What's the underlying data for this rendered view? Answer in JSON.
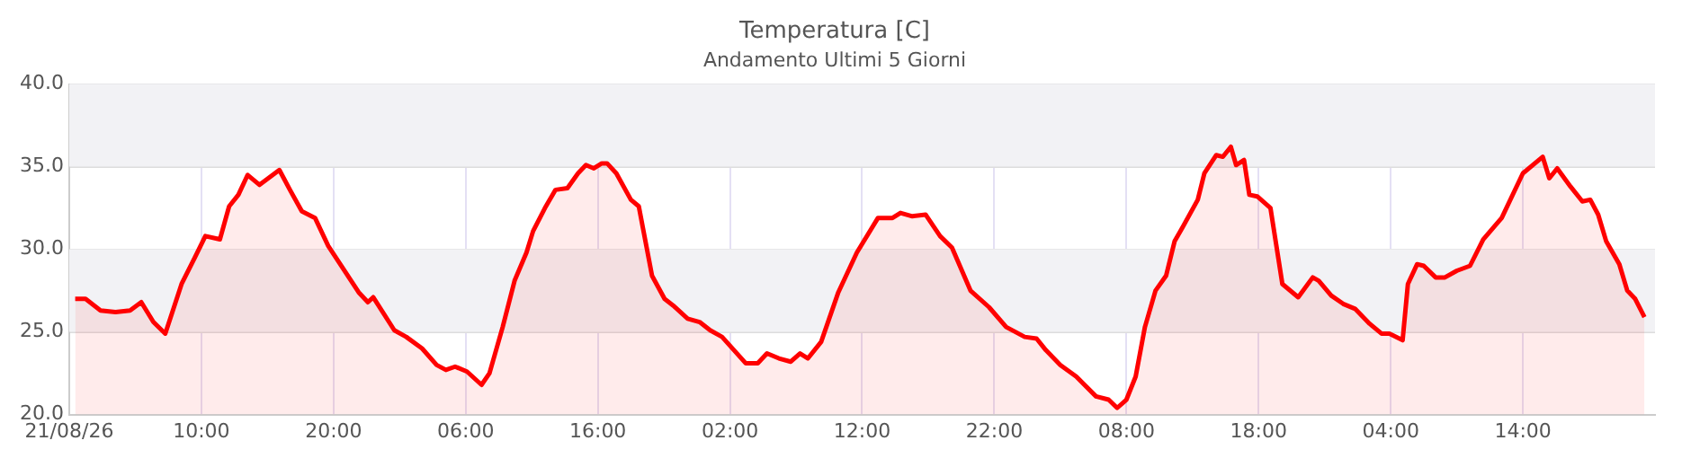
{
  "chart_data": {
    "type": "area",
    "title": "Temperatura [C]",
    "subtitle": "Andamento Ultimi 5 Giorni",
    "x": [
      "--08-21T00:27",
      "--08-21T01:14",
      "--08-21T02:22",
      "--08-21T03:30",
      "--08-21T04:36",
      "--08-21T05:27",
      "--08-21T06:22",
      "--08-21T07:16",
      "--08-21T08:30",
      "--08-21T09:30",
      "--08-21T10:18",
      "--08-21T11:24",
      "--08-21T12:06",
      "--08-21T12:48",
      "--08-21T13:30",
      "--08-21T14:24",
      "--08-21T15:54",
      "--08-21T16:42",
      "--08-21T17:36",
      "--08-21T18:36",
      "--08-21T19:36",
      "--08-21T20:45",
      "--08-21T21:54",
      "--08-21T22:36",
      "--08-21T23:00",
      "--08-22T00:36",
      "--08-22T01:30",
      "--08-22T02:42",
      "--08-22T03:48",
      "--08-22T04:30",
      "--08-22T05:12",
      "--08-22T06:06",
      "--08-22T07:12",
      "--08-22T07:48",
      "--08-22T08:48",
      "--08-22T09:42",
      "--08-22T10:36",
      "--08-22T11:06",
      "--08-22T12:00",
      "--08-22T12:48",
      "--08-22T13:42",
      "--08-22T14:30",
      "--08-22T15:06",
      "--08-22T15:42",
      "--08-22T16:18",
      "--08-22T16:42",
      "--08-22T17:24",
      "--08-22T18:30",
      "--08-22T19:06",
      "--08-22T20:06",
      "--08-22T21:03",
      "--08-22T21:42",
      "--08-22T22:48",
      "--08-22T23:42",
      "--08-23T00:30",
      "--08-23T01:24",
      "--08-23T02:18",
      "--08-23T03:12",
      "--08-23T04:06",
      "--08-23T04:48",
      "--08-23T05:42",
      "--08-23T06:36",
      "--08-23T07:18",
      "--08-23T07:54",
      "--08-23T08:54",
      "--08-23T10:12",
      "--08-23T11:36",
      "--08-23T13:12",
      "--08-23T14:18",
      "--08-23T14:54",
      "--08-23T15:48",
      "--08-23T16:48",
      "--08-23T17:54",
      "--08-23T18:48",
      "--08-23T20:12",
      "--08-23T21:36",
      "--08-23T22:54",
      "--08-24T00:18",
      "--08-24T01:12",
      "--08-24T01:54",
      "--08-24T03:00",
      "--08-24T04:12",
      "--08-24T05:42",
      "--08-24T06:39",
      "--08-24T07:18",
      "--08-24T08:00",
      "--08-24T08:42",
      "--08-24T09:24",
      "--08-24T10:12",
      "--08-24T11:00",
      "--08-24T11:39",
      "--08-24T12:18",
      "--08-24T13:24",
      "--08-24T13:54",
      "--08-24T14:48",
      "--08-24T15:18",
      "--08-24T15:54",
      "--08-24T16:18",
      "--08-24T16:54",
      "--08-24T17:18",
      "--08-24T17:54",
      "--08-24T18:54",
      "--08-24T19:48",
      "--08-24T21:00",
      "--08-24T22:06",
      "--08-24T22:33",
      "--08-24T23:30",
      "--08-25T00:24",
      "--08-25T01:18",
      "--08-25T02:24",
      "--08-25T03:18",
      "--08-25T03:54",
      "--08-25T04:54",
      "--08-25T05:18",
      "--08-25T06:00",
      "--08-25T06:30",
      "--08-25T07:24",
      "--08-25T08:06",
      "--08-25T09:00",
      "--08-25T10:00",
      "--08-25T11:00",
      "--08-25T12:24",
      "--08-25T14:00",
      "--08-25T15:30",
      "--08-25T16:00",
      "--08-25T16:36",
      "--08-25T17:36",
      "--08-25T18:30",
      "--08-25T19:06",
      "--08-25T19:42",
      "--08-25T20:18",
      "--08-25T21:18",
      "--08-25T21:54",
      "--08-25T22:30",
      "--08-25T23:12"
    ],
    "series": [
      {
        "color": "#ff0000",
        "values": [
          27.0,
          27.0,
          26.3,
          26.2,
          26.3,
          26.8,
          25.6,
          24.9,
          27.9,
          29.5,
          30.8,
          30.6,
          32.6,
          33.3,
          34.5,
          33.9,
          34.8,
          33.6,
          32.3,
          31.9,
          30.2,
          28.8,
          27.4,
          26.8,
          27.1,
          25.1,
          24.7,
          24.0,
          23.0,
          22.7,
          22.9,
          22.6,
          21.8,
          22.5,
          25.3,
          28.1,
          29.8,
          31.1,
          32.5,
          33.6,
          33.7,
          34.6,
          35.1,
          34.9,
          35.2,
          35.2,
          34.6,
          33.0,
          32.6,
          28.4,
          27.0,
          26.6,
          25.8,
          25.6,
          25.1,
          24.7,
          23.9,
          23.1,
          23.1,
          23.7,
          23.4,
          23.2,
          23.7,
          23.4,
          24.4,
          27.4,
          29.8,
          31.9,
          31.9,
          32.2,
          32.0,
          32.1,
          30.8,
          30.1,
          27.5,
          26.5,
          25.3,
          24.7,
          24.6,
          23.9,
          23.0,
          22.3,
          21.1,
          20.9,
          20.4,
          20.9,
          22.3,
          25.3,
          27.5,
          28.4,
          30.5,
          31.4,
          33.0,
          34.6,
          35.7,
          35.6,
          36.2,
          35.1,
          35.4,
          33.3,
          33.2,
          32.5,
          27.9,
          27.1,
          28.3,
          28.1,
          27.2,
          26.7,
          26.4,
          25.5,
          24.9,
          24.9,
          24.5,
          27.9,
          29.1,
          29.0,
          28.3,
          28.3,
          28.7,
          29.0,
          30.6,
          31.9,
          34.6,
          35.6,
          34.3,
          34.9,
          33.8,
          32.9,
          33.0,
          32.1,
          30.5,
          29.1,
          27.5,
          27.0,
          25.9
        ]
      }
    ],
    "xlim": [
      "--08-21T00:00",
      "--08-26T00:00"
    ],
    "xticks": [
      {
        "value": "--08-21T00:00",
        "label": "21/08/26"
      },
      {
        "value": "--08-21T10:00",
        "label": "10:00"
      },
      {
        "value": "--08-21T20:00",
        "label": "20:00"
      },
      {
        "value": "--08-22T06:00",
        "label": "06:00"
      },
      {
        "value": "--08-22T16:00",
        "label": "16:00"
      },
      {
        "value": "--08-23T02:00",
        "label": "02:00"
      },
      {
        "value": "--08-23T12:00",
        "label": "12:00"
      },
      {
        "value": "--08-23T22:00",
        "label": "22:00"
      },
      {
        "value": "--08-24T08:00",
        "label": "08:00"
      },
      {
        "value": "--08-24T18:00",
        "label": "18:00"
      },
      {
        "value": "--08-25T04:00",
        "label": "04:00"
      },
      {
        "value": "--08-25T14:00",
        "label": "14:00"
      }
    ],
    "ylim": [
      20,
      40
    ],
    "yticks": [
      {
        "value": 20,
        "label": "20.0"
      },
      {
        "value": 25,
        "label": "25.0"
      },
      {
        "value": 30,
        "label": "30.0"
      },
      {
        "value": 35,
        "label": "35.0"
      },
      {
        "value": 40,
        "label": "40.0"
      }
    ],
    "bands": [
      {
        "axis": "y",
        "from": 25,
        "to": 30,
        "color": "#f2f2f5"
      },
      {
        "axis": "y",
        "from": 35,
        "to": 40,
        "color": "#f2f2f5"
      }
    ],
    "grid": true,
    "legend": false,
    "marker": "none",
    "line_style": "solid"
  }
}
